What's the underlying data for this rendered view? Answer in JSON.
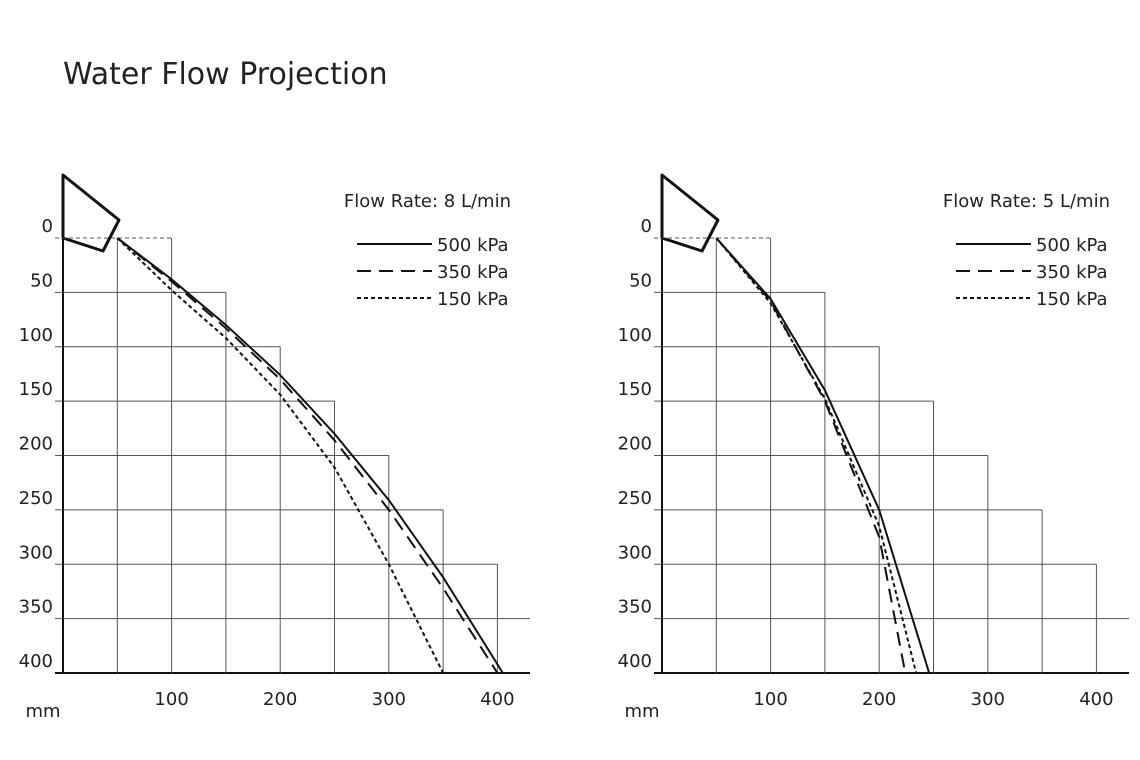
{
  "title": "Water Flow Projection",
  "chart_data": [
    {
      "type": "line",
      "subtitle": "Flow Rate: 8 L/min",
      "xlabel": "mm",
      "xlim": [
        0,
        430
      ],
      "ylim": [
        0,
        400
      ],
      "y_inverted": true,
      "xticks": [
        100,
        200,
        300,
        400
      ],
      "xgrid": [
        50,
        100,
        150,
        200,
        250,
        300,
        350,
        400
      ],
      "yticks": [
        0,
        50,
        100,
        150,
        200,
        250,
        300,
        350,
        400
      ],
      "grid": true,
      "legend": "top-right",
      "series": [
        {
          "name": "500 kPa",
          "color": "#111111",
          "dash": "solid",
          "x": [
            50,
            100,
            150,
            200,
            250,
            300,
            350,
            405
          ],
          "values": [
            0,
            38,
            80,
            126,
            180,
            241,
            312,
            400
          ]
        },
        {
          "name": "350 kPa",
          "color": "#111111",
          "dash": "long-dash",
          "x": [
            50,
            100,
            150,
            200,
            250,
            300,
            350,
            400
          ],
          "values": [
            0,
            40,
            83,
            130,
            186,
            250,
            322,
            400
          ]
        },
        {
          "name": "150 kPa",
          "color": "#111111",
          "dash": "short-dash",
          "x": [
            50,
            100,
            150,
            200,
            250,
            300,
            350
          ],
          "values": [
            0,
            48,
            92,
            144,
            211,
            300,
            400
          ]
        }
      ]
    },
    {
      "type": "line",
      "subtitle": "Flow Rate: 5 L/min",
      "xlabel": "mm",
      "xlim": [
        0,
        430
      ],
      "ylim": [
        0,
        400
      ],
      "y_inverted": true,
      "xticks": [
        100,
        200,
        300,
        400
      ],
      "xgrid": [
        50,
        100,
        150,
        200,
        250,
        300,
        350,
        400
      ],
      "yticks": [
        0,
        50,
        100,
        150,
        200,
        250,
        300,
        350,
        400
      ],
      "grid": true,
      "legend": "top-right",
      "series": [
        {
          "name": "500 kPa",
          "color": "#111111",
          "dash": "solid",
          "x": [
            50,
            100,
            150,
            200,
            246
          ],
          "values": [
            0,
            56,
            140,
            250,
            400
          ]
        },
        {
          "name": "350 kPa",
          "color": "#111111",
          "dash": "long-dash",
          "x": [
            50,
            100,
            150,
            200,
            224
          ],
          "values": [
            0,
            58,
            150,
            275,
            400
          ]
        },
        {
          "name": "150 kPa",
          "color": "#111111",
          "dash": "short-dash",
          "x": [
            50,
            100,
            150,
            200,
            234
          ],
          "values": [
            0,
            60,
            148,
            265,
            400
          ]
        }
      ]
    }
  ]
}
